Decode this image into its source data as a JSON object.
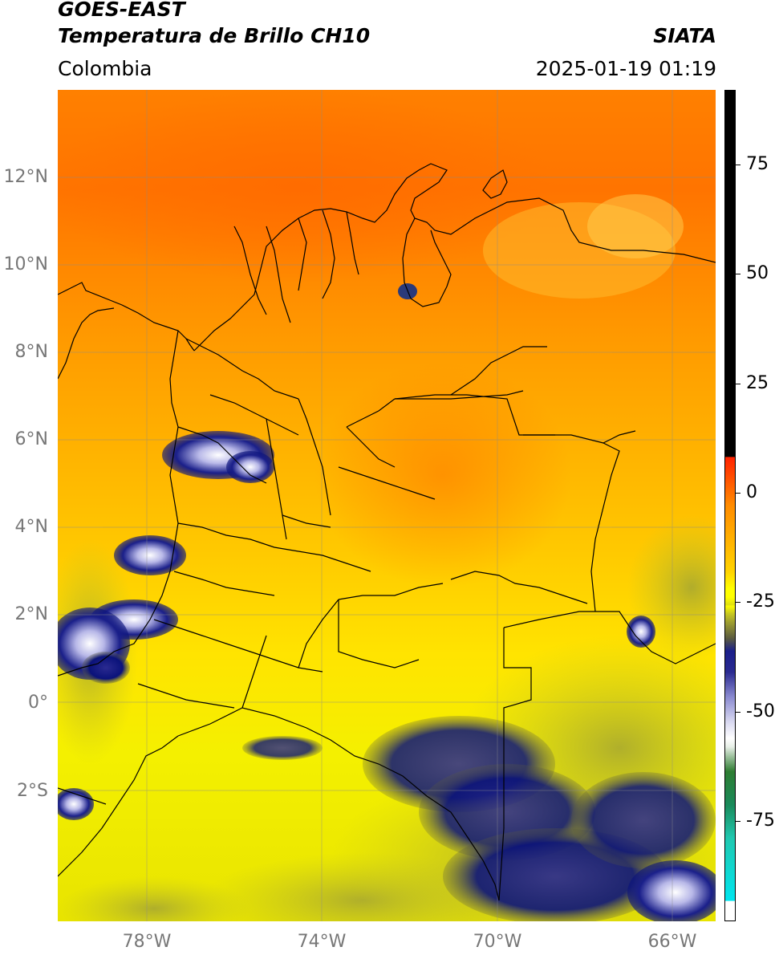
{
  "header": {
    "line1": "GOES-EAST",
    "line2": "Temperatura de Brillo CH10",
    "source": "SIATA",
    "region": "Colombia",
    "timestamp": "2025-01-19 01:19"
  },
  "map": {
    "lon_range": [
      -80,
      -65
    ],
    "lat_range": [
      -5,
      14
    ],
    "lat_ticks": [
      {
        "value": 12,
        "label": "12°N"
      },
      {
        "value": 10,
        "label": "10°N"
      },
      {
        "value": 8,
        "label": "8°N"
      },
      {
        "value": 6,
        "label": "6°N"
      },
      {
        "value": 4,
        "label": "4°N"
      },
      {
        "value": 2,
        "label": "2°N"
      },
      {
        "value": 0,
        "label": "0°"
      },
      {
        "value": -2,
        "label": "2°S"
      }
    ],
    "lon_ticks": [
      {
        "value": -78,
        "label": "78°W"
      },
      {
        "value": -74,
        "label": "74°W"
      },
      {
        "value": -70,
        "label": "70°W"
      },
      {
        "value": -66,
        "label": "66°W"
      }
    ]
  },
  "colorbar": {
    "range": [
      -100,
      90
    ],
    "ticks": [
      {
        "value": 75,
        "label": "75"
      },
      {
        "value": 50,
        "label": "50"
      },
      {
        "value": 25,
        "label": "25"
      },
      {
        "value": 0,
        "label": "0"
      },
      {
        "value": -25,
        "label": "-25"
      },
      {
        "value": -50,
        "label": "-50"
      },
      {
        "value": -75,
        "label": "-75"
      }
    ],
    "colors": {
      "black": "#000000",
      "red": "#ff2200",
      "orange": "#ff8c00",
      "yellow": "#ffff00",
      "olive": "#9a9a2a",
      "navy": "#0a127a",
      "lavender": "#b8b8e8",
      "white": "#ffffff",
      "green": "#2e7d32",
      "teal": "#20c8b0",
      "cyan": "#00e5ee"
    }
  }
}
